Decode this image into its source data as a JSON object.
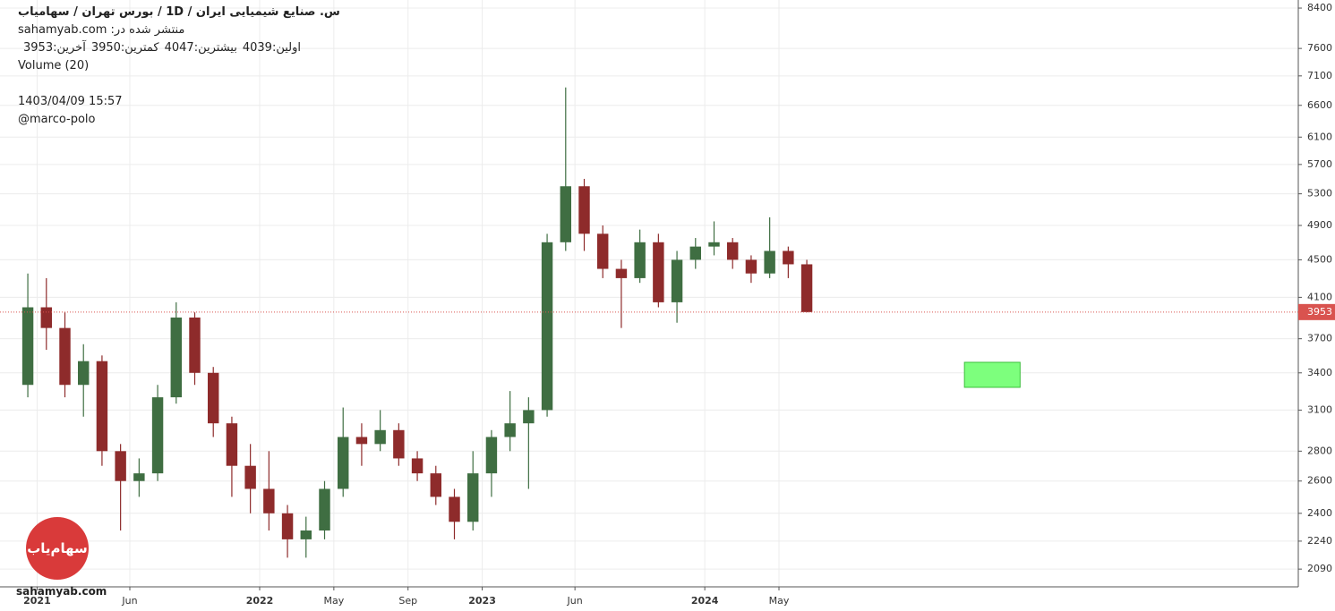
{
  "header": {
    "title": "س. صنایع شیمیایی ایران / 1D / بورس تهران / سهامیاب",
    "published": "منتشر شده در: sahamyab.com",
    "ohlc": [
      {
        "label": "اولین:",
        "value": 4039
      },
      {
        "label": "بیشترین:",
        "value": 4047
      },
      {
        "label": "کمترین:",
        "value": 3950
      },
      {
        "label": "آخرین:",
        "value": 3953
      }
    ],
    "volume": "Volume (20)",
    "timestamp": "1403/04/09 15:57",
    "author": "@marco-polo"
  },
  "watermark": "sahamyab.com",
  "logo_text": "سهام‌یاب",
  "chart_data": {
    "type": "candlestick",
    "log_scale": true,
    "grid": true,
    "up_color": "#3f6e42",
    "down_color": "#8e2b2b",
    "x": [
      "2020-12",
      "2021-01",
      "2021-02",
      "2021-03",
      "2021-04",
      "2021-05",
      "2021-06",
      "2021-07",
      "2021-08",
      "2021-09",
      "2021-10",
      "2021-11",
      "2021-12",
      "2022-01",
      "2022-02",
      "2022-03",
      "2022-04",
      "2022-05",
      "2022-06",
      "2022-07",
      "2022-08",
      "2022-09",
      "2022-10",
      "2022-11",
      "2022-12",
      "2023-01",
      "2023-02",
      "2023-03",
      "2023-04",
      "2023-05",
      "2023-06",
      "2023-07",
      "2023-08",
      "2023-09",
      "2023-10",
      "2023-11",
      "2023-12",
      "2024-01",
      "2024-02",
      "2024-03",
      "2024-04",
      "2024-05",
      "2024-06"
    ],
    "open": [
      3300,
      4000,
      3800,
      3300,
      3500,
      2800,
      2600,
      2650,
      3200,
      3900,
      3400,
      3000,
      2700,
      2550,
      2400,
      2250,
      2300,
      2550,
      2900,
      2850,
      2950,
      2750,
      2650,
      2500,
      2350,
      2650,
      2900,
      3000,
      3100,
      4700,
      5400,
      4800,
      4400,
      4300,
      4700,
      4050,
      4500,
      4650,
      4700,
      4500,
      4350,
      4600,
      4450
    ],
    "high": [
      4350,
      4300,
      3950,
      3650,
      3550,
      2850,
      2750,
      3300,
      4050,
      3950,
      3450,
      3050,
      2850,
      2800,
      2450,
      2380,
      2600,
      3120,
      3000,
      3100,
      3000,
      2800,
      2700,
      2550,
      2800,
      2950,
      3250,
      3200,
      4800,
      6900,
      5500,
      4900,
      4500,
      4850,
      4800,
      4600,
      4750,
      4950,
      4750,
      4550,
      5000,
      4650,
      4500
    ],
    "low": [
      3200,
      3600,
      3200,
      3050,
      2700,
      2300,
      2500,
      2600,
      3150,
      3300,
      2900,
      2500,
      2400,
      2300,
      2150,
      2150,
      2250,
      2500,
      2700,
      2800,
      2700,
      2600,
      2450,
      2250,
      2300,
      2500,
      2800,
      2550,
      3050,
      4600,
      4600,
      4300,
      3800,
      4250,
      4000,
      3850,
      4400,
      4550,
      4400,
      4250,
      4300,
      4300,
      3950
    ],
    "close": [
      4000,
      3800,
      3300,
      3500,
      2800,
      2600,
      2650,
      3200,
      3900,
      3400,
      3000,
      2700,
      2550,
      2400,
      2250,
      2300,
      2550,
      2900,
      2850,
      2950,
      2750,
      2650,
      2500,
      2350,
      2650,
      2900,
      3000,
      3100,
      4700,
      5400,
      4800,
      4400,
      4300,
      4700,
      4050,
      4500,
      4650,
      4700,
      4500,
      4350,
      4600,
      4450,
      3953
    ],
    "xlim": [
      "2020-11",
      "2026-09"
    ],
    "xticks": [
      {
        "value": "2021-01",
        "label": "2021"
      },
      {
        "value": "2021-06",
        "label": "Jun"
      },
      {
        "value": "2022-01",
        "label": "2022"
      },
      {
        "value": "2022-05",
        "label": "May"
      },
      {
        "value": "2022-09",
        "label": "Sep"
      },
      {
        "value": "2023-01",
        "label": "2023"
      },
      {
        "value": "2023-06",
        "label": "Jun"
      },
      {
        "value": "2024-01",
        "label": "2024"
      },
      {
        "value": "2024-05",
        "label": "May"
      }
    ],
    "ylim": [
      2000,
      8570
    ],
    "yticks": [
      2090,
      2240,
      2400,
      2600,
      2800,
      3100,
      3400,
      3700,
      4100,
      4500,
      4900,
      5300,
      5700,
      6100,
      6600,
      7100,
      7600,
      8400
    ],
    "last_price": 3953,
    "last_price_color": "#d9534f",
    "zone": {
      "x": [
        "2025-03",
        "2025-06"
      ],
      "y": [
        3280,
        3490
      ],
      "color": "#7dff7d"
    }
  }
}
